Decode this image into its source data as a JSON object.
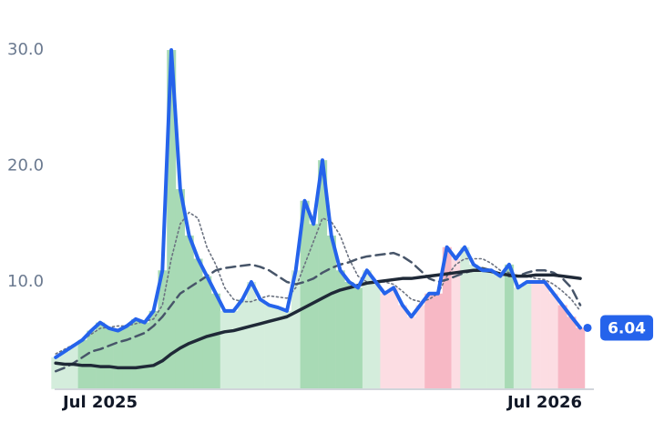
{
  "chart_data": {
    "type": "line",
    "categories": [
      null,
      null,
      null,
      null,
      null,
      "Jul 2025",
      null,
      null,
      null,
      null,
      null,
      null,
      null,
      null,
      null,
      null,
      null,
      null,
      null,
      null,
      null,
      null,
      null,
      null,
      null,
      null,
      null,
      null,
      null,
      null,
      null,
      null,
      null,
      null,
      null,
      null,
      null,
      null,
      null,
      null,
      null,
      null,
      null,
      null,
      null,
      null,
      null,
      null,
      null,
      null,
      null,
      null,
      null,
      null,
      null,
      "Jul 2026",
      null,
      null,
      null,
      null
    ],
    "ylim": [
      1,
      31
    ],
    "yticks": [
      {
        "value": 10,
        "label": "10.0"
      },
      {
        "value": 20,
        "label": "20.0"
      },
      {
        "value": 30,
        "label": "30.0"
      }
    ],
    "grid": false,
    "bar_colors": [
      "#d4eddc",
      "#d4eddc",
      "#d4eddc",
      "#a8dab5",
      "#a8dab5",
      "#a8dab5",
      "#a8dab5",
      "#a8dab5",
      "#a8dab5",
      "#a8dab5",
      "#a8dab5",
      "#a8dab5",
      "#a8dab5",
      "#a8dab5",
      "#a8dab5",
      "#a8dab5",
      "#a8dab5",
      "#a8dab5",
      "#a8dab5",
      "#d4eddc",
      "#d4eddc",
      "#d4eddc",
      "#d4eddc",
      "#d4eddc",
      "#d4eddc",
      "#d4eddc",
      "#d4eddc",
      "#d4eddc",
      "#a8dab5",
      "#a8dab5",
      "#a8dab5",
      "#a8dab5",
      "#a8dab5",
      "#a8dab5",
      "#a8dab5",
      "#d4eddc",
      "#d4eddc",
      "#fcdde3",
      "#fcdde3",
      "#fcdde3",
      "#fcdde3",
      "#fcdde3",
      "#f7b8c5",
      "#f7b8c5",
      "#f7b8c5",
      "#fcdde3",
      "#d4eddc",
      "#d4eddc",
      "#d4eddc",
      "#d4eddc",
      "#d4eddc",
      "#a8dab5",
      "#d4eddc",
      "#d4eddc",
      "#fcdde3",
      "#fcdde3",
      "#fcdde3",
      "#f7b8c5",
      "#f7b8c5",
      "#f7b8c5"
    ],
    "series": [
      {
        "color": "#2563eb",
        "dash": "solid",
        "values": [
          3.5,
          4,
          4.5,
          5,
          5.8,
          6.5,
          6,
          5.8,
          6.2,
          6.8,
          6.5,
          7.5,
          11,
          30,
          18,
          14,
          12,
          10.5,
          9,
          7.5,
          7.5,
          8.5,
          10,
          8.5,
          8,
          7.8,
          7.5,
          11,
          17,
          15,
          20.5,
          14,
          11,
          10,
          9.5,
          11,
          10,
          9,
          9.5,
          8,
          7,
          8,
          9,
          9,
          13,
          12,
          13,
          11.5,
          11,
          11,
          10.5,
          11.5,
          9.5,
          10,
          10,
          10,
          9,
          8,
          7,
          6.04
        ]
      },
      {
        "color": "#1f2937",
        "dash": "solid",
        "values": [
          3.0,
          2.9,
          2.9,
          2.8,
          2.8,
          2.7,
          2.7,
          2.6,
          2.6,
          2.6,
          2.7,
          2.8,
          3.2,
          3.8,
          4.3,
          4.7,
          5.0,
          5.3,
          5.5,
          5.7,
          5.8,
          6.0,
          6.2,
          6.4,
          6.6,
          6.8,
          7.0,
          7.4,
          7.8,
          8.2,
          8.6,
          9.0,
          9.3,
          9.5,
          9.7,
          9.9,
          10.0,
          10.1,
          10.2,
          10.3,
          10.3,
          10.4,
          10.5,
          10.6,
          10.7,
          10.8,
          10.9,
          11.0,
          11.0,
          10.9,
          10.7,
          10.6,
          10.5,
          10.5,
          10.6,
          10.6,
          10.6,
          10.5,
          10.4,
          10.3
        ]
      },
      {
        "color": "#475569",
        "dash": "dashed",
        "values": [
          2.3,
          2.6,
          3,
          3.5,
          4,
          4.2,
          4.5,
          4.8,
          5,
          5.3,
          5.6,
          6.2,
          7,
          8,
          9,
          9.5,
          10,
          10.5,
          11,
          11.2,
          11.3,
          11.4,
          11.5,
          11.3,
          11,
          10.5,
          10,
          9.8,
          10,
          10.3,
          10.8,
          11.2,
          11.5,
          11.7,
          12,
          12.2,
          12.3,
          12.4,
          12.5,
          12.2,
          11.7,
          11,
          10.3,
          10,
          10.2,
          10.5,
          10.8,
          11,
          11.2,
          11,
          10.7,
          10.5,
          10.5,
          10.8,
          11,
          11,
          10.8,
          10.3,
          9.5,
          8
        ]
      },
      {
        "color": "#6b7280",
        "dash": "dotted",
        "values": [
          3.8,
          4.2,
          4.6,
          5,
          5.5,
          6,
          6.1,
          6.2,
          6.2,
          6.4,
          6.6,
          6.8,
          8,
          12,
          15,
          16,
          15.5,
          13,
          11.5,
          9.5,
          8.5,
          8.3,
          8.3,
          8.6,
          8.8,
          8.7,
          8.6,
          9.5,
          11.5,
          13.5,
          15.5,
          15.2,
          14,
          12,
          10.5,
          10,
          10,
          10,
          9.8,
          9.2,
          8.5,
          8.3,
          8.5,
          9,
          10.5,
          11.5,
          12,
          12,
          12,
          11.6,
          11,
          10.8,
          10.5,
          10.5,
          10.3,
          10.2,
          9.8,
          9.2,
          8.5,
          7.5
        ]
      }
    ]
  }
}
